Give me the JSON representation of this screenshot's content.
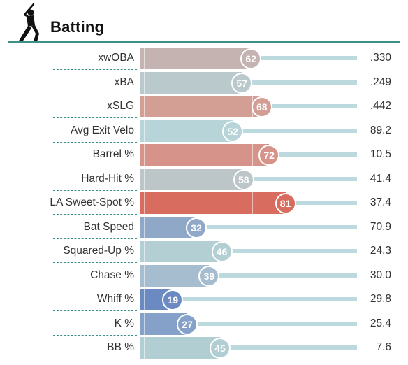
{
  "header": {
    "title": "Batting",
    "icon": "batter-silhouette-icon",
    "accent": "#3d8f8a"
  },
  "rows": [
    {
      "label": "xwOBA",
      "percentile": 62,
      "value": ".330",
      "color": "#c4b3b0"
    },
    {
      "label": "xBA",
      "percentile": 57,
      "value": ".249",
      "color": "#bac9cb"
    },
    {
      "label": "xSLG",
      "percentile": 68,
      "value": ".442",
      "color": "#d39e94"
    },
    {
      "label": "Avg Exit Velo",
      "percentile": 52,
      "value": "89.2",
      "color": "#b7d4d8"
    },
    {
      "label": "Barrel %",
      "percentile": 72,
      "value": "10.5",
      "color": "#d5938a"
    },
    {
      "label": "Hard-Hit %",
      "percentile": 58,
      "value": "41.4",
      "color": "#bcc6c8"
    },
    {
      "label": "LA Sweet-Spot %",
      "percentile": 81,
      "value": "37.4",
      "color": "#d86c5e"
    },
    {
      "label": "Bat Speed",
      "percentile": 32,
      "value": "70.9",
      "color": "#8fa8c8"
    },
    {
      "label": "Squared-Up %",
      "percentile": 46,
      "value": "24.3",
      "color": "#b3cfd4"
    },
    {
      "label": "Chase %",
      "percentile": 39,
      "value": "30.0",
      "color": "#a6bdd0"
    },
    {
      "label": "Whiff %",
      "percentile": 19,
      "value": "29.8",
      "color": "#6a8ac1"
    },
    {
      "label": "K %",
      "percentile": 27,
      "value": "25.4",
      "color": "#86a1c9"
    },
    {
      "label": "BB %",
      "percentile": 45,
      "value": "7.6",
      "color": "#b1ced3"
    }
  ]
}
